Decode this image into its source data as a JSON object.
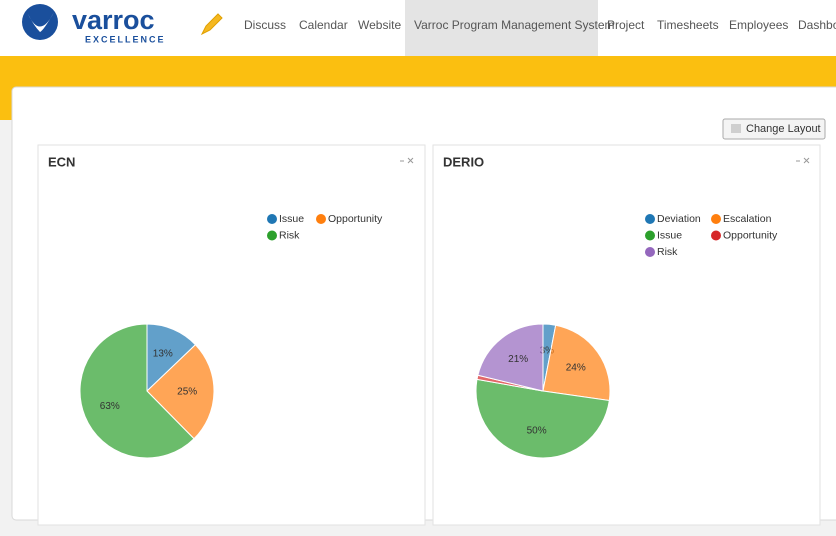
{
  "header": {
    "logo": {
      "name": "varroc",
      "tagline": "EXCELLENCE"
    },
    "nav": [
      "Discuss",
      "Calendar",
      "Website",
      "Varroc Program Management System",
      "Project",
      "Timesheets",
      "Employees",
      "Dashboard"
    ],
    "active": 3
  },
  "button": "Change Layout",
  "chart_data": [
    {
      "type": "pie",
      "title": "ECN",
      "categories": [
        "Issue",
        "Opportunity",
        "Risk"
      ],
      "values": [
        13,
        25,
        63
      ],
      "value_labels": [
        "13%",
        "25%",
        "63%"
      ],
      "colors": [
        "#1f77b4",
        "#ff7f0e",
        "#2ca02c"
      ]
    },
    {
      "type": "pie",
      "title": "DERIO",
      "categories": [
        "Deviation",
        "Escalation",
        "Issue",
        "Opportunity",
        "Risk"
      ],
      "values": [
        3,
        24,
        50,
        1,
        21
      ],
      "value_labels": [
        "3%",
        "24%",
        "50%",
        null,
        "21%"
      ],
      "colors": [
        "#1f77b4",
        "#ff7f0e",
        "#2ca02c",
        "#d62728",
        "#9467bd"
      ]
    }
  ]
}
